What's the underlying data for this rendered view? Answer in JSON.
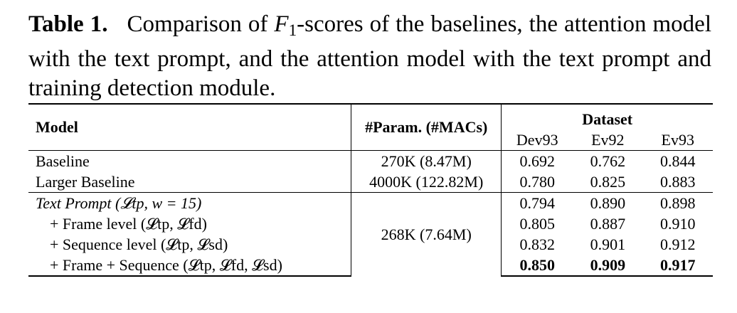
{
  "caption": {
    "label": "Table 1",
    "text_before_math": "Comparison of ",
    "math_symbol": "F",
    "math_sub": "1",
    "text_after_math": "-scores of the baselines, the attention model with the text prompt, and the attention model with the text prompt and training detection module."
  },
  "table": {
    "headers": {
      "model": "Model",
      "params": "#Param. (#MACs)",
      "dataset": "Dataset",
      "columns": [
        "Dev93",
        "Ev92",
        "Ev93"
      ]
    },
    "rows": [
      {
        "model": "Baseline",
        "params": "270K (8.47M)",
        "values": [
          "0.692",
          "0.762",
          "0.844"
        ]
      },
      {
        "model": "Larger Baseline",
        "params": "4000K (122.82M)",
        "values": [
          "0.780",
          "0.825",
          "0.883"
        ]
      },
      {
        "model": "Text Prompt (𝓛tp, w = 15)",
        "params": "268K (7.64M)",
        "values": [
          "0.794",
          "0.890",
          "0.898"
        ]
      },
      {
        "model": "+ Frame level (𝓛tp, 𝓛fd)",
        "params": "268K (7.64M)",
        "values": [
          "0.805",
          "0.887",
          "0.910"
        ]
      },
      {
        "model": "+ Sequence level (𝓛tp, 𝓛sd)",
        "params": "268K (7.64M)",
        "values": [
          "0.832",
          "0.901",
          "0.912"
        ]
      },
      {
        "model": "+ Frame + Sequence (𝓛tp, 𝓛fd, 𝓛sd)",
        "params": "268K (7.64M)",
        "values": [
          "0.850",
          "0.909",
          "0.917"
        ],
        "bold_values": true
      }
    ]
  }
}
